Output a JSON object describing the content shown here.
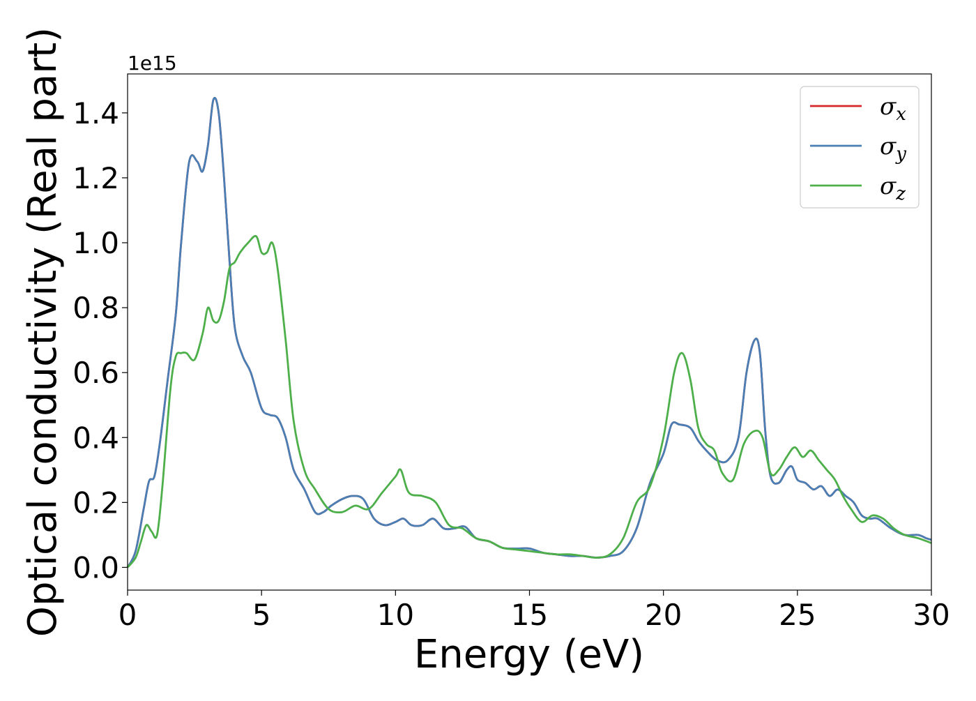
{
  "chart_data": {
    "type": "line",
    "title": "",
    "xlabel": "Energy (eV)",
    "ylabel": "Optical conductivity (Real part)",
    "y_offset_label": "1e15",
    "xlim": [
      0,
      30
    ],
    "ylim": [
      -0.07,
      1.52
    ],
    "xticks": [
      0,
      5,
      10,
      15,
      20,
      25,
      30
    ],
    "xtick_labels": [
      "0",
      "5",
      "10",
      "15",
      "20",
      "25",
      "30"
    ],
    "yticks": [
      0.0,
      0.2,
      0.4,
      0.6,
      0.8,
      1.0,
      1.2,
      1.4
    ],
    "ytick_labels": [
      "0.0",
      "0.2",
      "0.4",
      "0.6",
      "0.8",
      "1.0",
      "1.2",
      "1.4"
    ],
    "grid": false,
    "legend_position": "top-right",
    "series": [
      {
        "name": "σx",
        "legend_base": "σ",
        "legend_sub": "x",
        "color": "#d62728",
        "x": [
          0,
          0.3,
          0.6,
          0.8,
          1.0,
          1.2,
          1.5,
          1.8,
          2.0,
          2.3,
          2.6,
          2.8,
          3.0,
          3.2,
          3.4,
          3.6,
          3.8,
          4.0,
          4.3,
          4.6,
          5.0,
          5.3,
          5.6,
          5.9,
          6.2,
          6.6,
          7.0,
          7.3,
          7.6,
          8.0,
          8.4,
          8.8,
          9.2,
          9.6,
          10.0,
          10.3,
          10.6,
          11.0,
          11.4,
          11.8,
          12.2,
          12.6,
          13.0,
          13.5,
          14.0,
          14.5,
          15.0,
          15.5,
          16.0,
          16.5,
          17.0,
          17.5,
          18.0,
          18.5,
          19.0,
          19.5,
          20.0,
          20.3,
          20.6,
          21.0,
          21.3,
          21.6,
          22.0,
          22.4,
          22.8,
          23.1,
          23.4,
          23.6,
          23.8,
          24.0,
          24.3,
          24.6,
          24.8,
          25.0,
          25.3,
          25.6,
          25.9,
          26.2,
          26.5,
          26.8,
          27.1,
          27.4,
          27.7,
          28.0,
          28.5,
          29.0,
          29.5,
          29.8,
          30.0
        ],
        "y": [
          0,
          0.05,
          0.18,
          0.265,
          0.28,
          0.38,
          0.58,
          0.78,
          1.0,
          1.25,
          1.25,
          1.22,
          1.3,
          1.44,
          1.4,
          1.2,
          0.95,
          0.74,
          0.65,
          0.6,
          0.49,
          0.47,
          0.46,
          0.4,
          0.3,
          0.24,
          0.17,
          0.17,
          0.19,
          0.21,
          0.22,
          0.21,
          0.15,
          0.13,
          0.14,
          0.15,
          0.13,
          0.13,
          0.15,
          0.12,
          0.12,
          0.125,
          0.09,
          0.08,
          0.06,
          0.058,
          0.058,
          0.045,
          0.04,
          0.035,
          0.035,
          0.03,
          0.035,
          0.05,
          0.12,
          0.26,
          0.35,
          0.44,
          0.44,
          0.43,
          0.39,
          0.36,
          0.33,
          0.33,
          0.4,
          0.6,
          0.7,
          0.66,
          0.42,
          0.28,
          0.26,
          0.3,
          0.31,
          0.27,
          0.26,
          0.24,
          0.25,
          0.22,
          0.24,
          0.22,
          0.2,
          0.16,
          0.15,
          0.15,
          0.12,
          0.1,
          0.1,
          0.09,
          0.085
        ]
      },
      {
        "name": "σy",
        "legend_base": "σ",
        "legend_sub": "y",
        "color": "#4a7fb5",
        "x": [
          0,
          0.3,
          0.6,
          0.8,
          1.0,
          1.2,
          1.5,
          1.8,
          2.0,
          2.3,
          2.6,
          2.8,
          3.0,
          3.2,
          3.4,
          3.6,
          3.8,
          4.0,
          4.3,
          4.6,
          5.0,
          5.3,
          5.6,
          5.9,
          6.2,
          6.6,
          7.0,
          7.3,
          7.6,
          8.0,
          8.4,
          8.8,
          9.2,
          9.6,
          10.0,
          10.3,
          10.6,
          11.0,
          11.4,
          11.8,
          12.2,
          12.6,
          13.0,
          13.5,
          14.0,
          14.5,
          15.0,
          15.5,
          16.0,
          16.5,
          17.0,
          17.5,
          18.0,
          18.5,
          19.0,
          19.5,
          20.0,
          20.3,
          20.6,
          21.0,
          21.3,
          21.6,
          22.0,
          22.4,
          22.8,
          23.1,
          23.4,
          23.6,
          23.8,
          24.0,
          24.3,
          24.6,
          24.8,
          25.0,
          25.3,
          25.6,
          25.9,
          26.2,
          26.5,
          26.8,
          27.1,
          27.4,
          27.7,
          28.0,
          28.5,
          29.0,
          29.5,
          29.8,
          30.0
        ],
        "y": [
          0,
          0.05,
          0.18,
          0.265,
          0.28,
          0.38,
          0.58,
          0.78,
          1.0,
          1.25,
          1.25,
          1.22,
          1.3,
          1.44,
          1.4,
          1.2,
          0.95,
          0.74,
          0.65,
          0.6,
          0.49,
          0.47,
          0.46,
          0.4,
          0.3,
          0.24,
          0.17,
          0.17,
          0.19,
          0.21,
          0.22,
          0.21,
          0.15,
          0.13,
          0.14,
          0.15,
          0.13,
          0.13,
          0.15,
          0.12,
          0.12,
          0.125,
          0.09,
          0.08,
          0.06,
          0.058,
          0.058,
          0.045,
          0.04,
          0.035,
          0.035,
          0.03,
          0.035,
          0.05,
          0.12,
          0.26,
          0.35,
          0.44,
          0.44,
          0.43,
          0.39,
          0.36,
          0.33,
          0.33,
          0.4,
          0.6,
          0.7,
          0.66,
          0.42,
          0.28,
          0.26,
          0.3,
          0.31,
          0.27,
          0.26,
          0.24,
          0.25,
          0.22,
          0.24,
          0.22,
          0.2,
          0.16,
          0.15,
          0.15,
          0.12,
          0.1,
          0.1,
          0.09,
          0.085
        ]
      },
      {
        "name": "σz",
        "legend_base": "σ",
        "legend_sub": "z",
        "color": "#4daf4a",
        "x": [
          0,
          0.3,
          0.5,
          0.7,
          0.9,
          1.1,
          1.3,
          1.6,
          1.8,
          2.0,
          2.2,
          2.5,
          2.8,
          3.0,
          3.2,
          3.4,
          3.6,
          3.8,
          4.0,
          4.2,
          4.5,
          4.8,
          5.0,
          5.2,
          5.4,
          5.6,
          5.9,
          6.2,
          6.6,
          7.0,
          7.5,
          8.0,
          8.5,
          9.0,
          9.5,
          10.0,
          10.2,
          10.5,
          11.0,
          11.5,
          12.0,
          12.5,
          13.0,
          13.5,
          14.0,
          14.5,
          15.0,
          15.5,
          16.0,
          16.5,
          17.0,
          17.5,
          18.0,
          18.5,
          19.0,
          19.5,
          20.0,
          20.4,
          20.7,
          21.0,
          21.3,
          21.6,
          21.9,
          22.2,
          22.6,
          23.0,
          23.4,
          23.7,
          24.0,
          24.3,
          24.6,
          24.9,
          25.2,
          25.5,
          25.8,
          26.1,
          26.4,
          26.7,
          27.0,
          27.4,
          27.8,
          28.2,
          28.6,
          29.0,
          29.5,
          30.0
        ],
        "y": [
          0,
          0.03,
          0.08,
          0.13,
          0.11,
          0.1,
          0.25,
          0.55,
          0.65,
          0.66,
          0.66,
          0.64,
          0.72,
          0.8,
          0.76,
          0.76,
          0.82,
          0.92,
          0.94,
          0.97,
          1.0,
          1.02,
          0.97,
          0.97,
          1.0,
          0.92,
          0.7,
          0.45,
          0.3,
          0.24,
          0.18,
          0.17,
          0.19,
          0.18,
          0.23,
          0.28,
          0.3,
          0.23,
          0.22,
          0.2,
          0.13,
          0.12,
          0.09,
          0.08,
          0.06,
          0.055,
          0.05,
          0.045,
          0.04,
          0.04,
          0.035,
          0.03,
          0.04,
          0.09,
          0.2,
          0.25,
          0.4,
          0.6,
          0.66,
          0.58,
          0.43,
          0.38,
          0.36,
          0.29,
          0.27,
          0.38,
          0.42,
          0.4,
          0.29,
          0.3,
          0.34,
          0.37,
          0.34,
          0.36,
          0.33,
          0.3,
          0.27,
          0.22,
          0.18,
          0.14,
          0.16,
          0.15,
          0.12,
          0.1,
          0.09,
          0.075
        ]
      }
    ]
  }
}
